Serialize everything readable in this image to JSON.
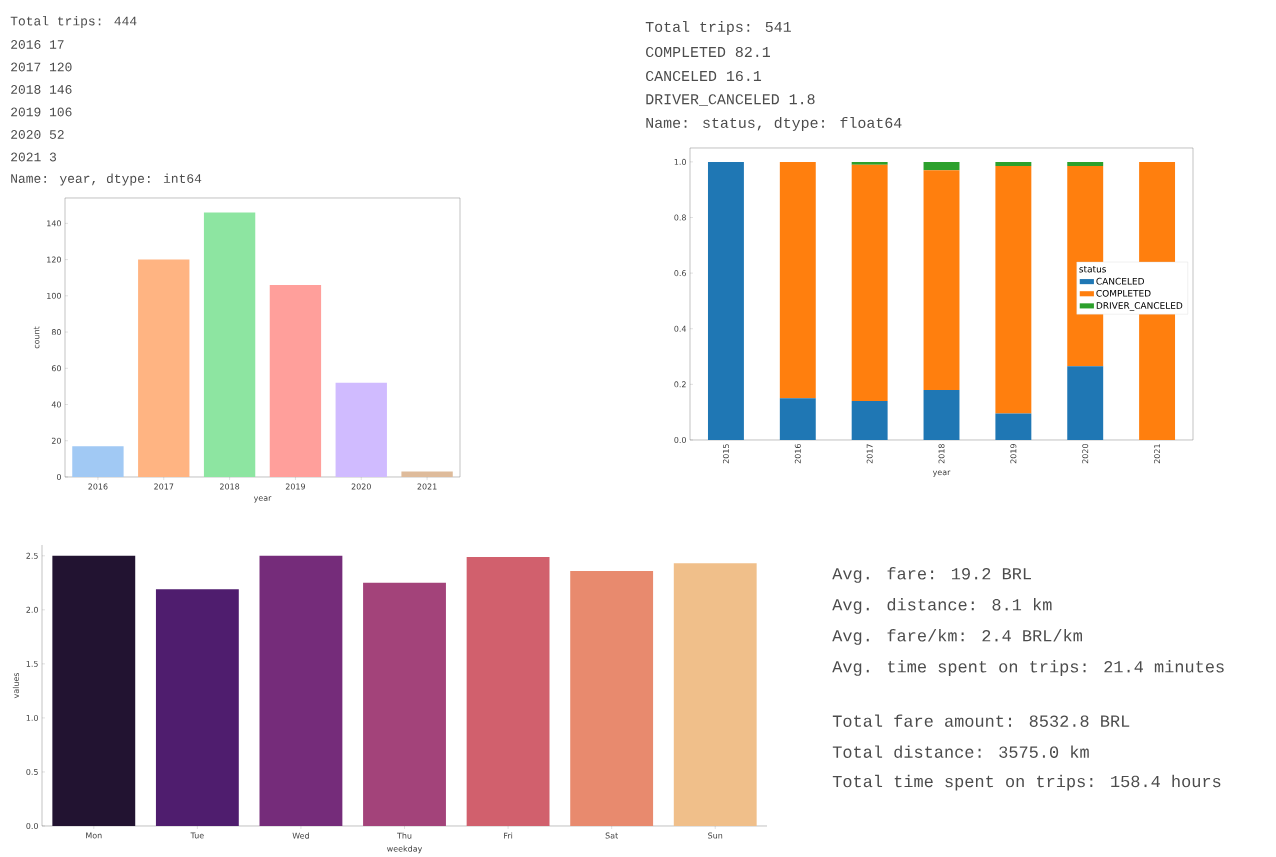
{
  "chart_data": [
    {
      "type": "bar",
      "annotations": [
        "Total trips: 444",
        "2016 17",
        "2017 120",
        "2018 146",
        "2019 106",
        "2020 52",
        "2021 3",
        "Name: year, dtype: int64"
      ],
      "categories": [
        "2016",
        "2017",
        "2018",
        "2019",
        "2020",
        "2021"
      ],
      "values": [
        17,
        120,
        146,
        106,
        52,
        3
      ],
      "colors": [
        "#a1c9f4",
        "#ffb482",
        "#8de5a1",
        "#ff9f9b",
        "#d0bbff",
        "#debb9b"
      ],
      "xlabel": "year",
      "ylabel": "count",
      "ylim": [
        0,
        154
      ],
      "yticks": [
        0,
        20,
        40,
        60,
        80,
        100,
        120,
        140
      ]
    },
    {
      "type": "bar",
      "stacked": true,
      "legend": "right",
      "legend_title": "status",
      "annotations": [
        "Total trips: 541",
        "COMPLETED 82.1",
        "CANCELED 16.1",
        "DRIVER_CANCELED 1.8",
        "Name: status, dtype: float64"
      ],
      "categories": [
        "2015",
        "2016",
        "2017",
        "2018",
        "2019",
        "2020",
        "2021"
      ],
      "series": [
        {
          "name": "CANCELED",
          "color": "#1f77b4",
          "values": [
            1.0,
            0.15,
            0.14,
            0.18,
            0.095,
            0.265,
            0
          ]
        },
        {
          "name": "COMPLETED",
          "color": "#ff7f0e",
          "values": [
            0,
            0.85,
            0.85,
            0.79,
            0.89,
            0.72,
            1.0
          ]
        },
        {
          "name": "DRIVER_CANCELED",
          "color": "#2ca02c",
          "values": [
            0,
            0,
            0.01,
            0.03,
            0.015,
            0.015,
            0
          ]
        }
      ],
      "xlabel": "year",
      "ylim": [
        0,
        1.05
      ],
      "yticks": [
        {
          "value": 0,
          "label": "0.0"
        },
        {
          "value": 0.2,
          "label": "0.2"
        },
        {
          "value": 0.4,
          "label": "0.4"
        },
        {
          "value": 0.6,
          "label": "0.6"
        },
        {
          "value": 0.8,
          "label": "0.8"
        },
        {
          "value": 1,
          "label": "1.0"
        }
      ]
    },
    {
      "type": "bar",
      "categories": [
        "Mon",
        "Tue",
        "Wed",
        "Thu",
        "Fri",
        "Sat",
        "Sun"
      ],
      "values": [
        2.5,
        2.19,
        2.5,
        2.25,
        2.49,
        2.36,
        2.43
      ],
      "colors": [
        "#221331",
        "#4f1d6e",
        "#752c7a",
        "#a3437a",
        "#d1606d",
        "#e88a6e",
        "#f0bf8a"
      ],
      "xlabel": "weekday",
      "ylabel": "values",
      "ylim": [
        0,
        2.6
      ],
      "yticks": [
        {
          "value": 0,
          "label": "0.0"
        },
        {
          "value": 0.5,
          "label": "0.5"
        },
        {
          "value": 1,
          "label": "1.0"
        },
        {
          "value": 1.5,
          "label": "1.5"
        },
        {
          "value": 2,
          "label": "2.0"
        },
        {
          "value": 2.5,
          "label": "2.5"
        }
      ]
    },
    {
      "type": "other",
      "annotations": [
        "Avg. fare: 19.2 BRL",
        "Avg. distance: 8.1 km",
        "Avg. fare/km: 2.4 BRL/km",
        "Avg. time spent on trips: 21.4 minutes",
        "Total fare amount: 8532.8 BRL",
        "Total distance: 3575.0 km",
        "Total time spent on trips: 158.4 hours"
      ]
    }
  ]
}
